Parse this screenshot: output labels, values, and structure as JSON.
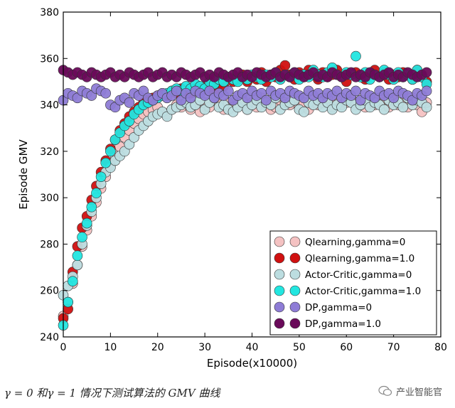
{
  "chart_data": {
    "type": "scatter",
    "xlabel": "Episode(x10000)",
    "ylabel": "Episode GMV",
    "xlim": [
      0,
      80
    ],
    "ylim": [
      240,
      380
    ],
    "xticks": [
      0,
      10,
      20,
      30,
      40,
      50,
      60,
      70,
      80
    ],
    "yticks": [
      240,
      260,
      280,
      300,
      320,
      340,
      360,
      380
    ],
    "grid": false,
    "legend_position": "bottom-right",
    "x": [
      0,
      1,
      2,
      3,
      4,
      5,
      6,
      7,
      8,
      9,
      10,
      11,
      12,
      13,
      14,
      15,
      16,
      17,
      18,
      19,
      20,
      21,
      22,
      23,
      24,
      25,
      26,
      27,
      28,
      29,
      30,
      31,
      32,
      33,
      34,
      35,
      36,
      37,
      38,
      39,
      40,
      41,
      42,
      43,
      44,
      45,
      46,
      47,
      48,
      49,
      50,
      51,
      52,
      53,
      54,
      55,
      56,
      57,
      58,
      59,
      60,
      61,
      62,
      63,
      64,
      65,
      66,
      67,
      68,
      69,
      70,
      71,
      72,
      73,
      74,
      75,
      76,
      77
    ],
    "series": [
      {
        "name": "Qlearning,gamma=0",
        "color": "#f4c2c2",
        "values": [
          249,
          255,
          263,
          271,
          279,
          286,
          292,
          298,
          304,
          309,
          314,
          318,
          322,
          326,
          329,
          332,
          334,
          336,
          337,
          338,
          339,
          337,
          336,
          338,
          340,
          339,
          341,
          338,
          340,
          337,
          341,
          339,
          342,
          340,
          338,
          341,
          339,
          340,
          342,
          338,
          341,
          339,
          343,
          340,
          338,
          339,
          342,
          341,
          340,
          343,
          339,
          341,
          338,
          342,
          340,
          341,
          343,
          339,
          342,
          340,
          341,
          343,
          340,
          341,
          339,
          342,
          340,
          343,
          341,
          339,
          342,
          340,
          341,
          339,
          343,
          340,
          337,
          341
        ]
      },
      {
        "name": "Qlearning,gamma=1.0",
        "color": "#d01010",
        "values": [
          248,
          252,
          268,
          279,
          287,
          292,
          299,
          305,
          311,
          316,
          321,
          325,
          329,
          332,
          335,
          337,
          339,
          341,
          342,
          343,
          344,
          345,
          344,
          346,
          345,
          347,
          346,
          345,
          347,
          346,
          348,
          347,
          346,
          349,
          348,
          352,
          350,
          351,
          353,
          350,
          352,
          351,
          354,
          350,
          353,
          352,
          355,
          357,
          353,
          351,
          354,
          352,
          355,
          353,
          351,
          354,
          352,
          353,
          355,
          352,
          350,
          353,
          354,
          352,
          351,
          353,
          355,
          352,
          354,
          351,
          353,
          352,
          354,
          353,
          351,
          355,
          352,
          350
        ]
      },
      {
        "name": "Actor-Critic,gamma=0",
        "color": "#bcdde0",
        "values": [
          258,
          262,
          266,
          271,
          280,
          288,
          294,
          300,
          306,
          311,
          313,
          316,
          318,
          320,
          323,
          326,
          329,
          331,
          333,
          335,
          336,
          337,
          335,
          338,
          339,
          340,
          341,
          339,
          340,
          342,
          338,
          341,
          343,
          339,
          340,
          338,
          337,
          339,
          341,
          338,
          340,
          342,
          339,
          341,
          340,
          343,
          338,
          340,
          341,
          342,
          338,
          337,
          341,
          340,
          342,
          339,
          341,
          338,
          340,
          339,
          342,
          341,
          338,
          340,
          342,
          339,
          341,
          340,
          338,
          342,
          340,
          341,
          339,
          343,
          340,
          342,
          341,
          339
        ]
      },
      {
        "name": "Actor-Critic,gamma=1.0",
        "color": "#22e6e0",
        "values": [
          245,
          255,
          264,
          275,
          283,
          289,
          296,
          302,
          309,
          315,
          320,
          325,
          328,
          331,
          333,
          336,
          338,
          340,
          341,
          342,
          343,
          344,
          345,
          346,
          347,
          346,
          348,
          347,
          349,
          348,
          347,
          350,
          349,
          351,
          350,
          352,
          351,
          350,
          352,
          351,
          353,
          352,
          351,
          353,
          352,
          354,
          351,
          353,
          352,
          354,
          351,
          353,
          352,
          355,
          353,
          352,
          354,
          356,
          353,
          352,
          354,
          353,
          361,
          352,
          354,
          351,
          353,
          352,
          355,
          353,
          351,
          354,
          352,
          353,
          351,
          355,
          352,
          349
        ]
      },
      {
        "name": "DP,gamma=0",
        "color": "#8e7cd6",
        "values": [
          342,
          345,
          344,
          343,
          346,
          345,
          344,
          347,
          346,
          345,
          340,
          339,
          342,
          343,
          341,
          345,
          344,
          346,
          343,
          342,
          344,
          345,
          343,
          344,
          346,
          342,
          345,
          343,
          346,
          345,
          344,
          346,
          343,
          345,
          344,
          346,
          342,
          344,
          345,
          343,
          346,
          344,
          345,
          342,
          346,
          344,
          345,
          343,
          346,
          345,
          344,
          343,
          346,
          344,
          345,
          343,
          345,
          344,
          346,
          343,
          345,
          344,
          346,
          342,
          345,
          344,
          343,
          346,
          344,
          345,
          343,
          346,
          345,
          344,
          342,
          345,
          344,
          346
        ]
      },
      {
        "name": "DP,gamma=1.0",
        "color": "#6a0a5a",
        "values": [
          355,
          354,
          353,
          354,
          353,
          352,
          354,
          353,
          352,
          353,
          354,
          352,
          353,
          352,
          354,
          353,
          352,
          353,
          354,
          352,
          353,
          354,
          352,
          353,
          352,
          354,
          353,
          352,
          353,
          354,
          352,
          353,
          352,
          354,
          353,
          352,
          353,
          354,
          352,
          353,
          352,
          354,
          353,
          352,
          353,
          354,
          352,
          353,
          352,
          354,
          353,
          352,
          353,
          354,
          352,
          353,
          352,
          354,
          353,
          352,
          353,
          354,
          352,
          353,
          352,
          354,
          353,
          352,
          353,
          354,
          352,
          353,
          352,
          354,
          353,
          352,
          353,
          354
        ]
      }
    ]
  },
  "caption": "γ = 0 和γ = 1 情况下测试算法的 GMV 曲线",
  "watermark": "产业智能官"
}
